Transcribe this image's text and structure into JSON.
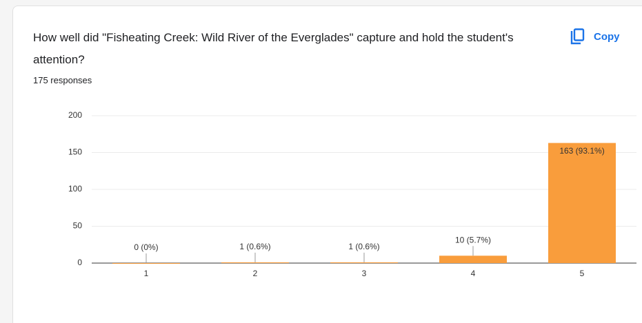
{
  "chart_data": {
    "type": "bar",
    "title": "How well did \"Fisheating Creek: Wild River of the Everglades\" capture and hold the student's attention?",
    "subtitle": "175 responses",
    "button": "Copy",
    "categories": [
      "1",
      "2",
      "3",
      "4",
      "5"
    ],
    "values": [
      0,
      1,
      1,
      10,
      163
    ],
    "value_labels": [
      "0 (0%)",
      "1 (0.6%)",
      "1 (0.6%)",
      "10 (5.7%)",
      "163 (93.1%)"
    ],
    "color": "#f99d3c",
    "ylim": [
      0,
      200
    ],
    "yticks": [
      0,
      50,
      100,
      150,
      200
    ],
    "grid": true
  }
}
